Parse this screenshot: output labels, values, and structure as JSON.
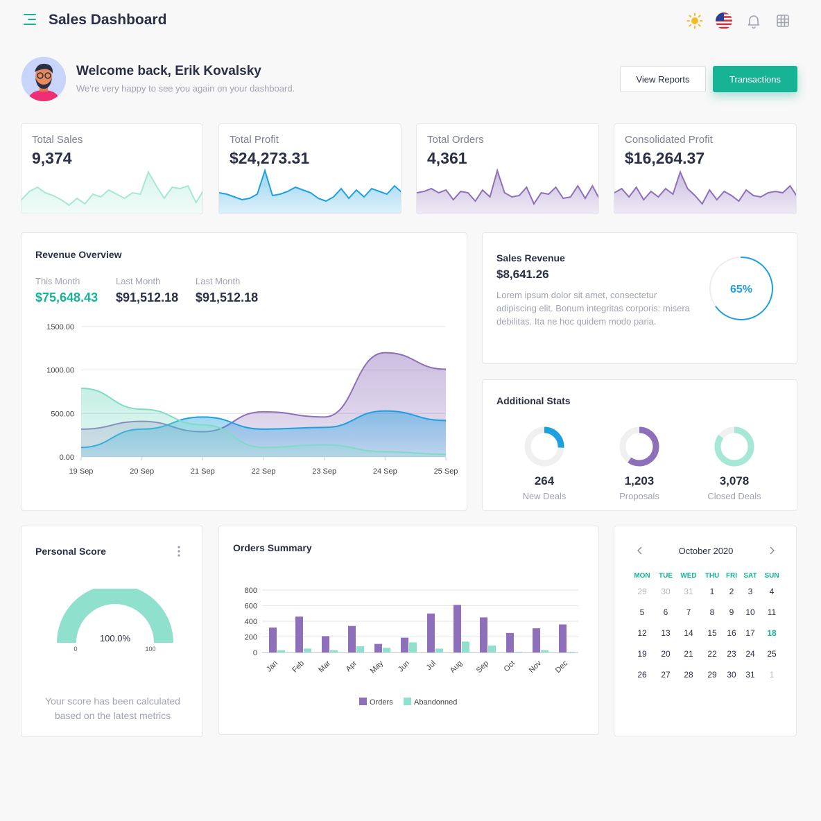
{
  "header": {
    "title": "Sales Dashboard"
  },
  "welcome": {
    "title": "Welcome back, Erik Kovalsky",
    "subtitle": "We're very happy to see you again on your dashboard.",
    "view_reports_label": "View Reports",
    "transactions_label": "Transactions"
  },
  "stats": [
    {
      "label": "Total Sales",
      "value": "9,374",
      "color": "#a6e8d5",
      "line": [
        20,
        32,
        38,
        30,
        26,
        20,
        12,
        22,
        14,
        28,
        24,
        34,
        28,
        22,
        30,
        28,
        60,
        40,
        22,
        38,
        36,
        40,
        16,
        34
      ]
    },
    {
      "label": "Total Profit",
      "value": "$24,273.31",
      "color": "#1e9fe0",
      "line": [
        30,
        28,
        24,
        20,
        22,
        28,
        62,
        26,
        28,
        32,
        38,
        34,
        30,
        22,
        18,
        24,
        36,
        22,
        34,
        24,
        36,
        32,
        28,
        40,
        30
      ]
    },
    {
      "label": "Total Orders",
      "value": "4,361",
      "color": "#8e6fba",
      "line": [
        30,
        32,
        36,
        30,
        34,
        20,
        32,
        30,
        18,
        34,
        24,
        62,
        30,
        24,
        26,
        38,
        14,
        30,
        28,
        38,
        22,
        24,
        40,
        22,
        40,
        20
      ]
    },
    {
      "label": "Consolidated Profit",
      "value": "$16,264.37",
      "color": "#8e6fba",
      "line": [
        30,
        36,
        24,
        38,
        20,
        32,
        24,
        36,
        28,
        60,
        36,
        26,
        14,
        34,
        20,
        32,
        26,
        18,
        34,
        26,
        24,
        30,
        32,
        30,
        40,
        24
      ]
    }
  ],
  "revenue_overview": {
    "title": "Revenue Overview",
    "items": [
      {
        "label": "This Month",
        "value": "$75,648.43",
        "color": "#16b394"
      },
      {
        "label": "Last Month",
        "value": "$91,512.18",
        "color": "#2a2f45"
      },
      {
        "label": "Last Month",
        "value": "$91,512.18",
        "color": "#2a2f45"
      }
    ],
    "chart_data": {
      "type": "area",
      "categories": [
        "19 Sep",
        "20 Sep",
        "21 Sep",
        "22 Sep",
        "23 Sep",
        "24 Sep",
        "25 Sep"
      ],
      "ylim": [
        0,
        1500
      ],
      "yticks": [
        "0.00",
        "500.00",
        "1000.00",
        "1500.00"
      ],
      "series": [
        {
          "values": [
            320,
            410,
            290,
            520,
            460,
            1200,
            1010
          ],
          "color": "#8e6fba"
        },
        {
          "values": [
            110,
            320,
            460,
            320,
            340,
            530,
            420
          ],
          "color": "#1e9fe0"
        },
        {
          "values": [
            790,
            550,
            370,
            110,
            140,
            60,
            30
          ],
          "color": "#7fdcc4"
        }
      ]
    }
  },
  "sales_revenue": {
    "title": "Sales Revenue",
    "value": "$8,641.26",
    "description": "Lorem ipsum dolor sit amet, consectetur adipiscing elit. Bonum integritas corporis: misera debilitas. Ita ne hoc quidem modo paria.",
    "percent": 65,
    "percent_label": "65%",
    "color": "#1e9fe0"
  },
  "additional_stats": {
    "title": "Additional Stats",
    "items": [
      {
        "value": "264",
        "label": "New Deals",
        "fraction": 0.26,
        "color": "#1e9fe0"
      },
      {
        "value": "1,203",
        "label": "Proposals",
        "fraction": 0.6,
        "color": "#8e6fba"
      },
      {
        "value": "3,078",
        "label": "Closed Deals",
        "fraction": 0.85,
        "color": "#a6e8d5"
      }
    ]
  },
  "personal_score": {
    "title": "Personal Score",
    "value_label": "100.0%",
    "fraction": 1.0,
    "min_label": "0",
    "max_label": "100",
    "color": "#8fe0cc",
    "footer": "Your score has been calculated based on the latest metrics"
  },
  "orders_summary": {
    "title": "Orders Summary",
    "chart_data": {
      "type": "bar",
      "categories": [
        "Jan",
        "Feb",
        "Mar",
        "Apr",
        "May",
        "Jun",
        "Jul",
        "Aug",
        "Sep",
        "Oct",
        "Nov",
        "Dec"
      ],
      "ylim": [
        0,
        800
      ],
      "yticks": [
        "0",
        "200",
        "400",
        "600",
        "800"
      ],
      "series": [
        {
          "name": "Orders",
          "color": "#8e6fba",
          "values": [
            320,
            460,
            210,
            340,
            110,
            190,
            500,
            610,
            450,
            250,
            310,
            360
          ]
        },
        {
          "name": "Abandonned",
          "color": "#8fe0cc",
          "values": [
            30,
            50,
            30,
            80,
            60,
            130,
            50,
            140,
            90,
            10,
            30,
            10
          ]
        }
      ]
    }
  },
  "calendar": {
    "title": "October 2020",
    "weekdays": [
      "MON",
      "TUE",
      "WED",
      "THU",
      "FRI",
      "SAT",
      "SUN"
    ],
    "weeks": [
      [
        [
          "29",
          1
        ],
        [
          "30",
          1
        ],
        [
          "31",
          1
        ],
        [
          "1",
          0
        ],
        [
          "2",
          0
        ],
        [
          "3",
          0
        ],
        [
          "4",
          0
        ]
      ],
      [
        [
          "5",
          0
        ],
        [
          "6",
          0
        ],
        [
          "7",
          0
        ],
        [
          "8",
          0
        ],
        [
          "9",
          0
        ],
        [
          "10",
          0
        ],
        [
          "11",
          0
        ]
      ],
      [
        [
          "12",
          0
        ],
        [
          "13",
          0
        ],
        [
          "14",
          0
        ],
        [
          "15",
          0
        ],
        [
          "16",
          0
        ],
        [
          "17",
          0
        ],
        [
          "18",
          2
        ]
      ],
      [
        [
          "19",
          0
        ],
        [
          "20",
          0
        ],
        [
          "21",
          0
        ],
        [
          "22",
          0
        ],
        [
          "23",
          0
        ],
        [
          "24",
          0
        ],
        [
          "25",
          0
        ]
      ],
      [
        [
          "26",
          0
        ],
        [
          "27",
          0
        ],
        [
          "28",
          0
        ],
        [
          "29",
          0
        ],
        [
          "30",
          0
        ],
        [
          "31",
          0
        ],
        [
          "1",
          1
        ]
      ]
    ]
  }
}
